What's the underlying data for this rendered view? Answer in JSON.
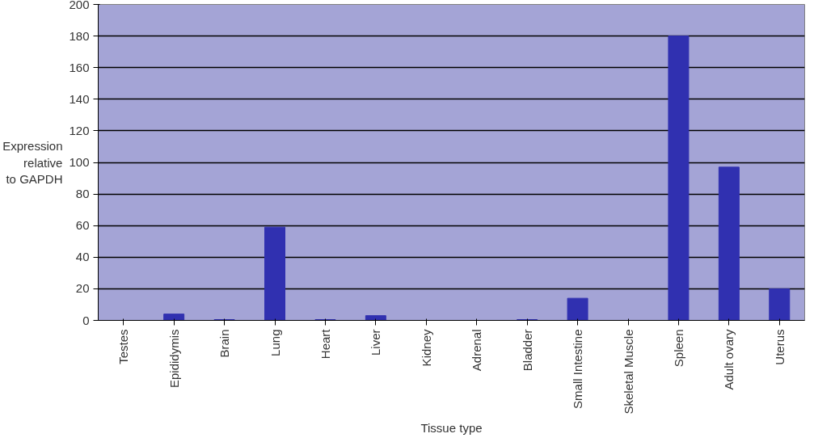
{
  "chart_data": {
    "type": "bar",
    "xlabel": "Tissue type",
    "ylabel": "Expression relative to GAPDH",
    "categories": [
      "Testes",
      "Epididymis",
      "Brain",
      "Lung",
      "Heart",
      "Liver",
      "Kidney",
      "Adrenal",
      "Bladder",
      "Small Intestine",
      "Skeletal Muscle",
      "Spleen",
      "Adult ovary",
      "Uterus"
    ],
    "values": [
      0,
      4,
      0.5,
      59,
      0.5,
      3,
      0,
      0,
      0.5,
      14,
      0,
      180,
      97,
      20
    ],
    "color": "#3030b0",
    "ylim": [
      0,
      200
    ],
    "yticks": [
      0,
      20,
      40,
      60,
      80,
      100,
      120,
      140,
      160,
      180,
      200
    ],
    "grid": "y"
  }
}
